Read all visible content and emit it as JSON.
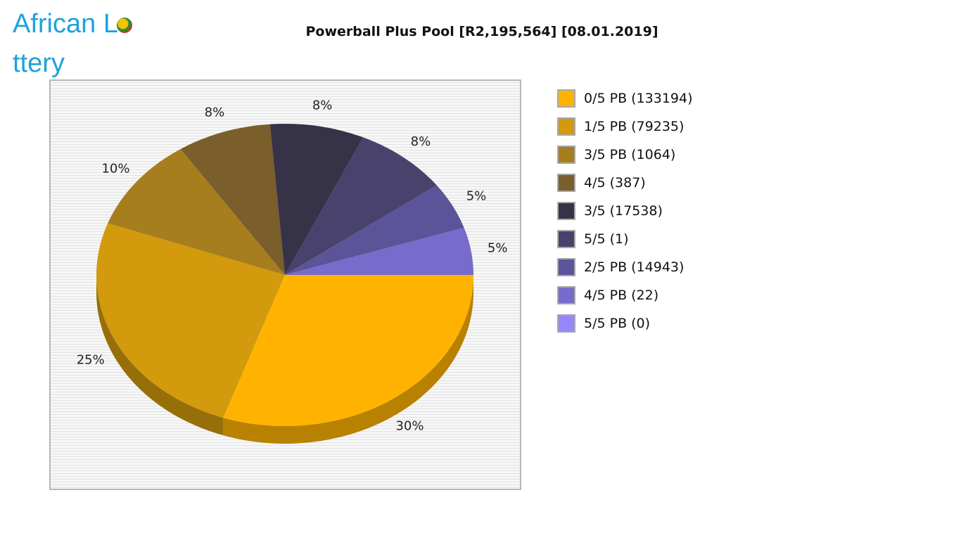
{
  "logo": {
    "text_before": "African L",
    "text_after": "ttery"
  },
  "chart_data": {
    "type": "pie",
    "title": "Powerball Plus Pool [R2,195,564] [08.01.2019]",
    "legend_position": "right",
    "slices": [
      {
        "label": "0/5 PB (133194)",
        "value": 133194,
        "pct_label": "30%",
        "color": "#ffb300"
      },
      {
        "label": "1/5 PB (79235)",
        "value": 79235,
        "pct_label": "25%",
        "color": "#d29a0c"
      },
      {
        "label": "3/5 PB (1064)",
        "value": 1064,
        "pct_label": "10%",
        "color": "#a67e1d"
      },
      {
        "label": "4/5 (387)",
        "value": 387,
        "pct_label": "8%",
        "color": "#7a5e2b"
      },
      {
        "label": "3/5 (17538)",
        "value": 17538,
        "pct_label": "8%",
        "color": "#363348"
      },
      {
        "label": "5/5 (1)",
        "value": 1,
        "pct_label": "8%",
        "color": "#48426c"
      },
      {
        "label": "2/5 PB (14943)",
        "value": 14943,
        "pct_label": "5%",
        "color": "#5c5498"
      },
      {
        "label": "4/5 PB (22)",
        "value": 22,
        "pct_label": "5%",
        "color": "#776bcc"
      },
      {
        "label": "5/5 PB (0)",
        "value": 0,
        "pct_label": "",
        "color": "#9488fc"
      }
    ]
  }
}
